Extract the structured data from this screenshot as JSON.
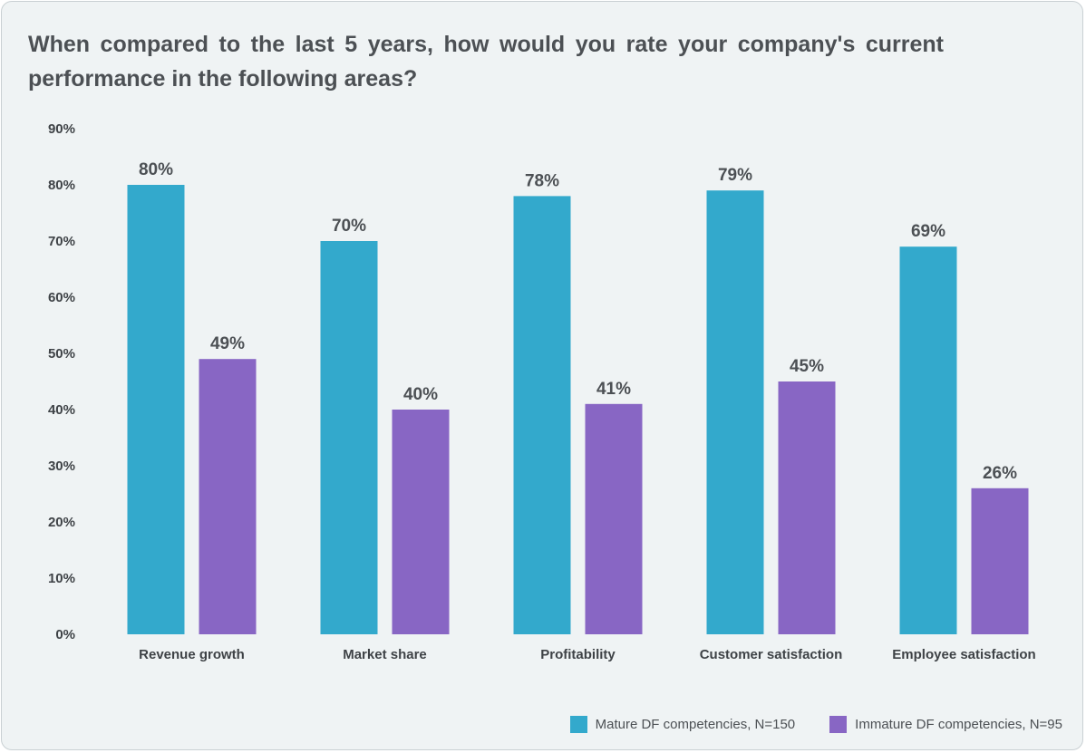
{
  "chart_data": {
    "type": "bar",
    "title": "When compared to the last 5 years, how would you rate your company's current performance in the following areas?",
    "categories": [
      "Revenue growth",
      "Market share",
      "Profitability",
      "Customer satisfaction",
      "Employee satisfaction"
    ],
    "series": [
      {
        "name": "Mature DF competencies, N=150",
        "color": "#33a9cc",
        "values": [
          80,
          70,
          78,
          79,
          69
        ],
        "labels": [
          "80%",
          "70%",
          "78%",
          "79%",
          "69%"
        ]
      },
      {
        "name": "Immature DF competencies, N=95",
        "color": "#8866c4",
        "values": [
          49,
          40,
          41,
          45,
          26
        ],
        "labels": [
          "49%",
          "40%",
          "41%",
          "45%",
          "26%"
        ]
      }
    ],
    "ylim": [
      0,
      90
    ],
    "yticks": [
      "0%",
      "10%",
      "20%",
      "30%",
      "40%",
      "50%",
      "60%",
      "70%",
      "80%",
      "90%"
    ],
    "grid": false,
    "legend_position": "bottom-right"
  }
}
